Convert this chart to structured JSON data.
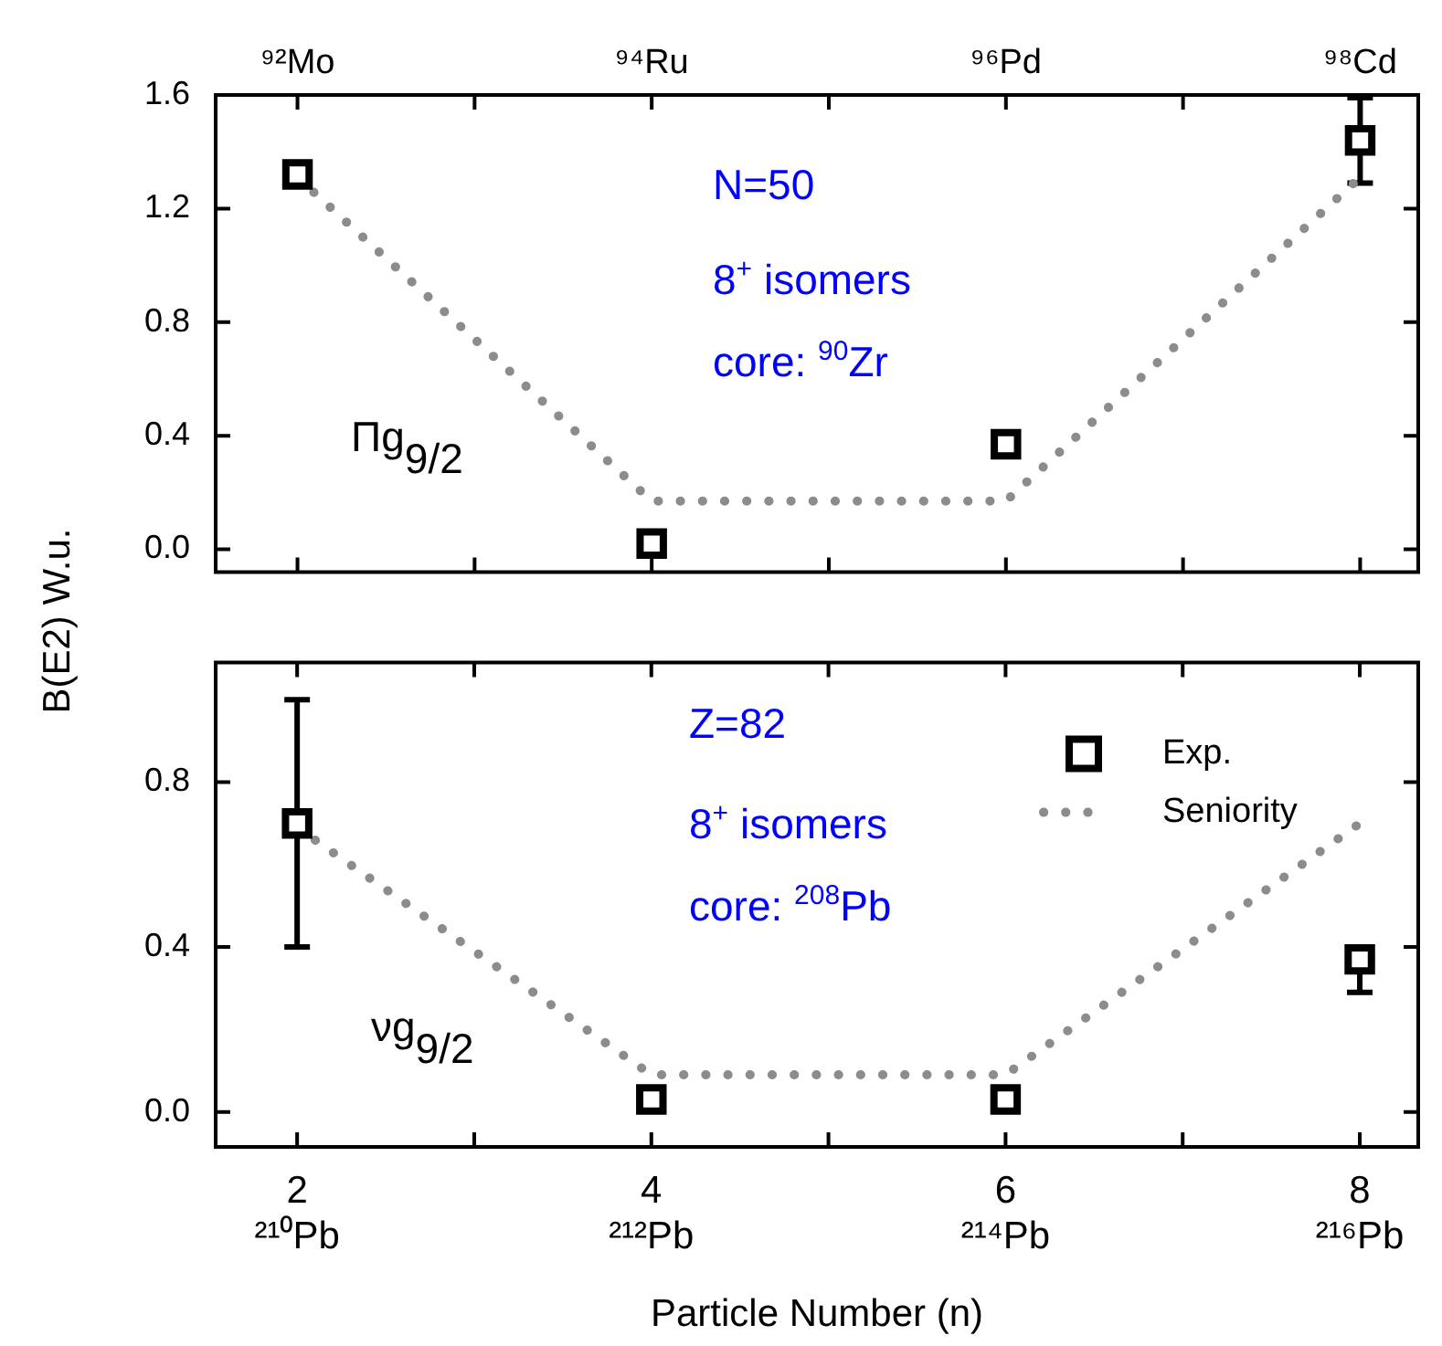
{
  "chart_data": [
    {
      "type": "scatter",
      "ylabel": "B(E2) W.u.",
      "categories": [
        "⁹²Mo",
        "⁹⁴Ru",
        "⁹⁶Pd",
        "⁹⁸Cd"
      ],
      "ylim": [
        -0.08,
        1.6
      ],
      "yticks": [
        {
          "value": 0,
          "label": "0.0"
        },
        0.4,
        0.8,
        1.2,
        1.6
      ],
      "legend": false,
      "grid": false,
      "series": [
        {
          "type": "scatter",
          "marker": "square",
          "color": "#000000",
          "values": [
            1.32,
            0.02,
            0.37,
            1.44
          ],
          "errors": [
            null,
            null,
            null,
            [
              1.29,
              1.59
            ]
          ]
        },
        {
          "type": "line",
          "marker": "none",
          "line_style": "dotted",
          "color": "#8c8c8c",
          "values": [
            1.31,
            0.17,
            0.17,
            1.31
          ]
        }
      ],
      "annotations": [
        "N=50",
        "8$^{+}$ isomers",
        "core: $^{90}$Zr",
        "Πg$_{9/2}$"
      ]
    },
    {
      "type": "scatter",
      "xlabel": "Particle Number (n)",
      "x": [
        2,
        4,
        6,
        8
      ],
      "xlim": [
        1.54,
        8.33
      ],
      "ylim": [
        -0.085,
        1.09
      ],
      "xticks": [
        {
          "value": 2,
          "label": "2\n²¹⁰Pb"
        },
        {
          "value": 3,
          "label": null
        },
        {
          "value": 4,
          "label": "4\n²¹²Pb"
        },
        {
          "value": 5,
          "label": null
        },
        {
          "value": 6,
          "label": "6\n²¹⁴Pb"
        },
        {
          "value": 7,
          "label": null
        },
        {
          "value": 8,
          "label": "8\n²¹⁶Pb"
        }
      ],
      "yticks": [
        {
          "value": 0,
          "label": "0.0"
        },
        0.4,
        0.8
      ],
      "legend": "top right",
      "grid": false,
      "series": [
        {
          "type": "scatter",
          "marker": "square",
          "name": "Exp.",
          "color": "#000000",
          "values": [
            0.7,
            0.03,
            0.03,
            0.37
          ],
          "errors": [
            [
              0.4,
              1.0
            ],
            null,
            null,
            [
              0.29,
              0.39
            ]
          ]
        },
        {
          "type": "line",
          "marker": "none",
          "name": "Seniority",
          "line_style": "dotted",
          "color": "#8c8c8c",
          "values": [
            0.69,
            0.09,
            0.09,
            0.7
          ]
        }
      ],
      "annotations": [
        "Z=82",
        "8$^{+}$ isomers",
        "core: $^{208}$Pb",
        "νg$_{9/2}$"
      ]
    }
  ]
}
